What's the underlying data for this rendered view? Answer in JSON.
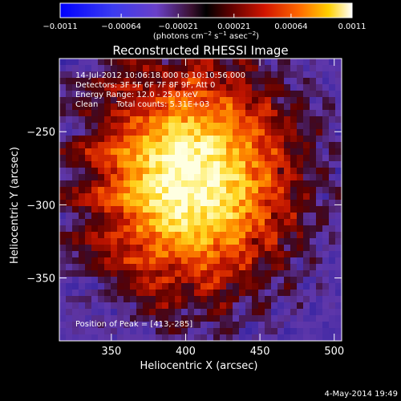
{
  "chart_data": {
    "type": "heatmap",
    "title": "Reconstructed RHESSI Image",
    "xlabel": "Heliocentric X (arcsec)",
    "ylabel": "Heliocentric Y (arcsec)",
    "xlim": [
      315,
      505
    ],
    "ylim": [
      -393,
      -200
    ],
    "x_ticks": [
      350,
      400,
      450,
      500
    ],
    "y_ticks": [
      -250,
      -300,
      -350
    ],
    "x_tick_labels": [
      "350",
      "400",
      "450",
      "500"
    ],
    "y_tick_labels": [
      "−250",
      "−300",
      "−350"
    ],
    "colorbar": {
      "min": -0.0011,
      "max": 0.0011,
      "ticks": [
        -0.0011,
        -0.00064,
        -0.00021,
        0.00021,
        0.00064,
        0.0011
      ],
      "tick_labels": [
        "−0.0011",
        "−0.00064",
        "−0.00021",
        "0.00021",
        "0.00064",
        "0.0011"
      ],
      "unit_main": "(photons cm",
      "unit_exp1": "−2",
      "unit_mid": " s",
      "unit_exp2": "−1",
      "unit_mid2": " asec",
      "unit_exp3": "−2",
      "unit_end": ")"
    },
    "peak": {
      "x": 413,
      "y": -285
    },
    "grid": false,
    "colormap": "blue-purple-red-yellow-white (RHESSI)"
  },
  "annotations": {
    "time_range": "14-Jul-2012 10:06:18.000 to 10:10:56.000",
    "detectors": "Detectors: 3F 5F 6F 7F 8F 9F, Att 0",
    "energy_range": "Energy Range: 12.0 - 25.0 keV",
    "method": "Clean",
    "total_counts": "Total counts: 5.31E+03",
    "peak_label": "Position of Peak = [413,-285]"
  },
  "footer": {
    "timestamp": "4-May-2014 19:49"
  },
  "colors": {
    "background": "#000000",
    "text": "#ffffff",
    "low": "#2a22a8",
    "mid": "#c81400",
    "high": "#ffffe6"
  }
}
